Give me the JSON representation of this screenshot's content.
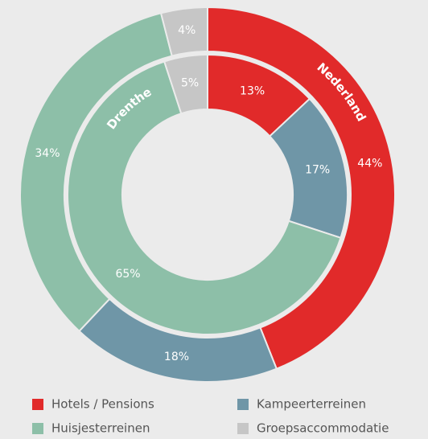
{
  "chart_data": {
    "type": "donut",
    "categories": [
      "Hotels / Pensions",
      "Kampeerterreinen",
      "Huisjesterreinen",
      "Groepsaccommodatie"
    ],
    "colors": [
      "#e12a2a",
      "#6f96a7",
      "#8dbfa8",
      "#c6c6c6"
    ],
    "series": [
      {
        "name": "Nederland",
        "values": [
          44,
          18,
          34,
          4
        ],
        "value_labels": [
          "44%",
          "18%",
          "34%",
          "4%"
        ]
      },
      {
        "name": "Drenthe",
        "values": [
          13,
          17,
          65,
          5
        ],
        "value_labels": [
          "13%",
          "17%",
          "65%",
          "5%"
        ]
      }
    ]
  }
}
